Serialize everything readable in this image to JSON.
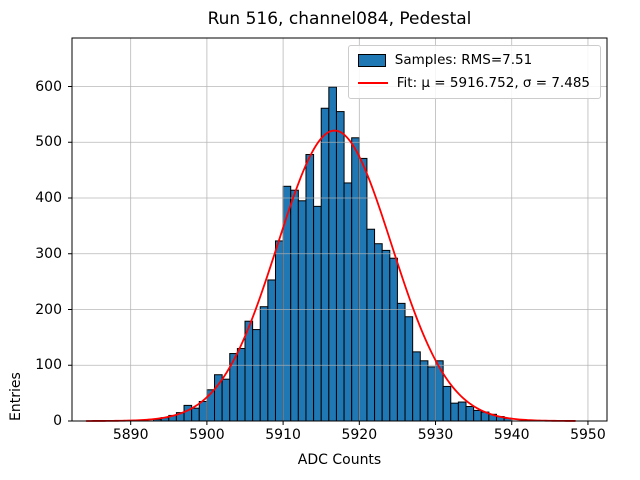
{
  "chart_data": {
    "type": "bar",
    "subtype": "histogram",
    "title": "Run 516, channel084, Pedestal",
    "xlabel": "ADC Counts",
    "ylabel": "Entries",
    "xlim": [
      5882.3,
      5952.5
    ],
    "ylim": [
      0,
      687
    ],
    "x_ticks": [
      5890,
      5900,
      5910,
      5920,
      5930,
      5940,
      5950
    ],
    "y_ticks": [
      0,
      100,
      200,
      300,
      400,
      500,
      600
    ],
    "grid": true,
    "legend_position": "upper right",
    "histogram": {
      "name": "Samples",
      "rms": 7.51,
      "bin_start": 5893,
      "bin_width": 1,
      "counts": [
        3,
        6,
        10,
        15,
        28,
        23,
        35,
        56,
        83,
        75,
        121,
        130,
        179,
        164,
        205,
        253,
        323,
        421,
        414,
        395,
        478,
        385,
        561,
        599,
        555,
        427,
        508,
        471,
        344,
        318,
        306,
        292,
        211,
        187,
        124,
        108,
        97,
        108,
        62,
        32,
        34,
        26,
        19,
        16,
        12,
        8,
        5
      ]
    },
    "fit": {
      "name": "Fit",
      "mu": 5916.752,
      "sigma": 7.485,
      "amplitude": 521,
      "x_start": 5884.2,
      "x_end": 5948.6
    },
    "colors": {
      "bar_fill": "#1f77b4",
      "bar_edge": "#000000",
      "fit_line": "#ff0000",
      "grid": "#b0b0b0",
      "frame": "#000000"
    }
  },
  "legend": {
    "samples_label": "Samples: RMS=7.51",
    "fit_label": "Fit: μ = 5916.752, σ = 7.485"
  }
}
